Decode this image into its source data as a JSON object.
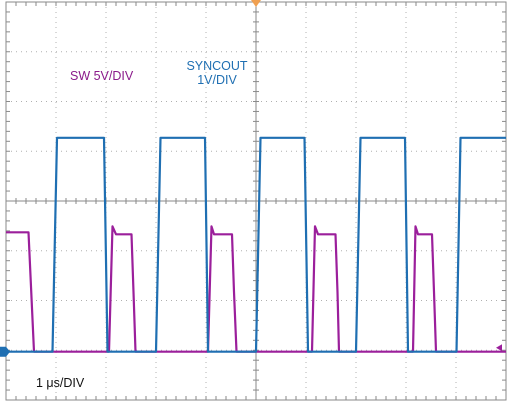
{
  "chart_data": {
    "type": "line",
    "title": "",
    "xlabel": "",
    "ylabel": "",
    "grid": true,
    "divisions": {
      "x": 10,
      "y": 8
    },
    "x_range_div": [
      0,
      10
    ],
    "y_range_div": [
      -4,
      4
    ],
    "annotations": {
      "sw_scale": "SW 5V/DIV",
      "syncout_name": "SYNCOUT",
      "syncout_scale": "1V/DIV",
      "timebase": "1 μs/DIV"
    },
    "series": [
      {
        "name": "SW",
        "color": "#9b1f9b",
        "volts_per_div": 5,
        "unit": "V",
        "x_div": [
          0.0,
          0.45,
          0.56,
          0.62,
          2.06,
          2.13,
          2.2,
          2.51,
          2.55,
          2.59,
          4.04,
          4.11,
          4.16,
          4.52,
          4.56,
          4.61,
          6.12,
          6.18,
          6.24,
          6.59,
          6.63,
          6.66,
          8.14,
          8.19,
          8.24,
          8.52,
          8.56,
          8.6,
          9.98,
          10.0
        ],
        "y_v": [
          12.0,
          12.0,
          0.0,
          0.0,
          0.0,
          12.6,
          11.8,
          11.8,
          6.0,
          0.0,
          0.0,
          12.6,
          11.8,
          11.8,
          6.0,
          0.0,
          0.0,
          12.6,
          11.8,
          11.8,
          6.0,
          0.0,
          0.0,
          12.6,
          11.8,
          11.8,
          6.0,
          0.0,
          0.0,
          0.0
        ]
      },
      {
        "name": "SYNCOUT",
        "color": "#1f6fb2",
        "volts_per_div": 1,
        "unit": "V",
        "x_div": [
          0.0,
          0.93,
          1.02,
          1.96,
          2.03,
          3.0,
          3.09,
          3.98,
          4.04,
          5.0,
          5.09,
          5.97,
          6.04,
          7.0,
          7.09,
          7.98,
          8.04,
          9.01,
          9.09,
          10.0
        ],
        "y_v": [
          0.0,
          0.0,
          4.3,
          4.3,
          0.0,
          0.0,
          4.3,
          4.3,
          0.0,
          0.0,
          4.3,
          4.3,
          0.0,
          0.0,
          4.3,
          4.3,
          0.0,
          0.0,
          4.3,
          4.3
        ]
      }
    ],
    "ground_reference_div": -3.03,
    "trigger_marker_x_div": 5.0,
    "trigger_level_div": -2.95
  }
}
